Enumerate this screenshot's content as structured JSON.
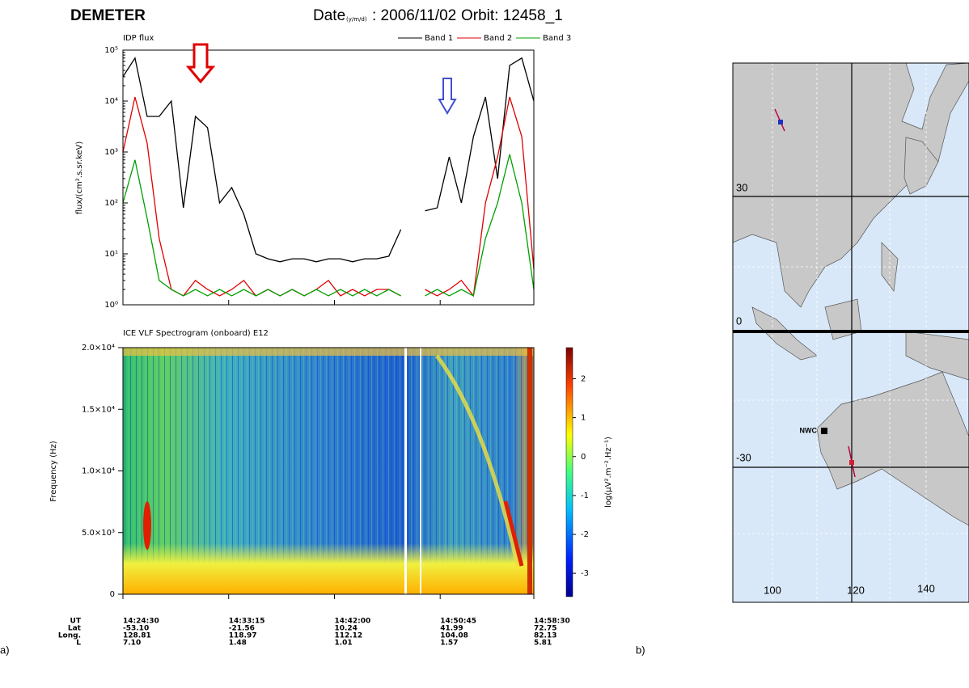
{
  "header": {
    "mission": "DEMETER",
    "date_label": "Date",
    "date_units": "(y/m/d)",
    "date": ": 2006/11/02",
    "orbit": "Orbit: 12458_1"
  },
  "panel_labels": [
    "a)",
    "b)"
  ],
  "chart_data": [
    {
      "type": "line",
      "title": "IDP flux",
      "y_label": "flux/(cm².s.sr.keV)",
      "log_scale": true,
      "ylim": [
        1,
        100000
      ],
      "yticks": [
        {
          "value": 1,
          "label": "10⁰"
        },
        {
          "value": 10,
          "label": "10¹"
        },
        {
          "value": 100,
          "label": "10²"
        },
        {
          "value": 1000,
          "label": "10³"
        },
        {
          "value": 10000,
          "label": "10⁴"
        },
        {
          "value": 100000,
          "label": "10⁵"
        }
      ],
      "xlim": [
        "14:24:30",
        "14:58:30"
      ],
      "x": [
        "14:24:30",
        "14:25:30",
        "14:26:30",
        "14:27:30",
        "14:28:30",
        "14:29:30",
        "14:30:30",
        "14:31:30",
        "14:32:30",
        "14:33:30",
        "14:34:30",
        "14:35:30",
        "14:36:30",
        "14:37:30",
        "14:38:30",
        "14:39:30",
        "14:40:30",
        "14:41:30",
        "14:42:30",
        "14:43:30",
        "14:44:30",
        "14:45:30",
        "14:46:30",
        "14:47:30",
        "14:48:30",
        "14:49:30",
        "14:50:30",
        "14:51:30",
        "14:52:30",
        "14:53:30",
        "14:54:30",
        "14:55:30",
        "14:56:30",
        "14:57:30",
        "14:58:30"
      ],
      "legend": "top-right",
      "series": [
        {
          "name": "Band 1",
          "color": "#000000",
          "values": [
            30000,
            70000,
            5000,
            5000,
            10000,
            80,
            5000,
            3000,
            100,
            200,
            60,
            10,
            8,
            7,
            8,
            8,
            7,
            8,
            8,
            7,
            8,
            8,
            9,
            30,
            null,
            70,
            80,
            800,
            100,
            2000,
            12000,
            300,
            50000,
            70000,
            10000
          ]
        },
        {
          "name": "Band 2",
          "color": "#e00000",
          "values": [
            1000,
            12000,
            1500,
            20,
            2,
            1.5,
            3,
            2,
            1.5,
            2,
            3,
            1.5,
            2,
            1.5,
            2,
            1.5,
            2,
            3,
            1.5,
            2,
            1.5,
            2,
            2,
            1.5,
            null,
            2,
            1.5,
            2,
            3,
            1.5,
            100,
            800,
            12000,
            2000,
            5
          ]
        },
        {
          "name": "Band 3",
          "color": "#00a000",
          "values": [
            100,
            700,
            50,
            3,
            2,
            1.5,
            2,
            1.5,
            2,
            1.5,
            2,
            1.5,
            2,
            1.5,
            2,
            1.5,
            2,
            1.5,
            2,
            1.5,
            2,
            1.5,
            2,
            1.5,
            null,
            1.5,
            2,
            1.5,
            2,
            1.5,
            20,
            100,
            900,
            100,
            2
          ]
        }
      ]
    },
    {
      "type": "spectrogram",
      "title": "ICE VLF Spectrogram (onboard) E12",
      "y_label": "Frequency (Hz)",
      "ylim": [
        0,
        20000
      ],
      "yticks": [
        0,
        {
          "value": 5000,
          "label": "5.0×10³"
        },
        {
          "value": 10000,
          "label": "1.0×10⁴"
        },
        {
          "value": 15000,
          "label": "1.5×10⁴"
        },
        {
          "value": 20000,
          "label": "2.0×10⁴"
        }
      ],
      "xlim": [
        "14:24:30",
        "14:58:30"
      ],
      "x_tick_title": "UT",
      "xticks": [
        "14:24:30",
        "14:33:15",
        "14:42:00",
        "14:50:45",
        "14:58:30"
      ],
      "x_rows": [
        {
          "name": "Lat",
          "values": [
            "-53.10",
            "-21.56",
            "10.24",
            "41.99",
            "72.75"
          ]
        },
        {
          "name": "Long.",
          "values": [
            "128.81",
            "118.97",
            "112.12",
            "104.08",
            "82.13"
          ]
        },
        {
          "name": "L",
          "values": [
            "7.10",
            "1.48",
            "1.01",
            "1.57",
            "5.81"
          ]
        }
      ],
      "colorbar_label": "log(µV².m⁻².Hz⁻¹)",
      "clim": [
        -3.6,
        2.8
      ],
      "cticks": [
        -3,
        -2,
        -1,
        0,
        1,
        2
      ]
    }
  ],
  "map": {
    "lat_labels": [
      30,
      0,
      -30
    ],
    "lon_labels": [
      100,
      120,
      140
    ],
    "station": "NWC"
  }
}
